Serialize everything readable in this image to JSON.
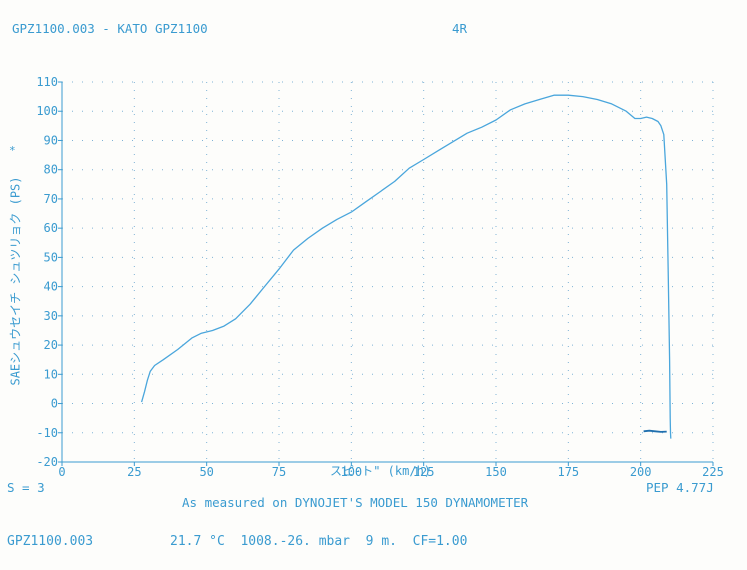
{
  "header": {
    "left": "GPZ1100.003 - KATO GPZ1100",
    "right": "4R"
  },
  "chart_data": {
    "type": "line",
    "xlabel": "スピ-ト\" (km/h)",
    "ylabel": "SAEシュウセイチ シュツリョク (PS)",
    "ylabel_marker": "*",
    "xlim": [
      0,
      225
    ],
    "ylim": [
      -20,
      110
    ],
    "x_ticks": [
      0,
      25,
      50,
      75,
      100,
      125,
      150,
      175,
      200,
      225
    ],
    "y_ticks": [
      110,
      100,
      90,
      80,
      70,
      60,
      50,
      40,
      30,
      20,
      10,
      0,
      -10,
      -20
    ],
    "grid": "dotted",
    "series": [
      {
        "color": "#4aa6dc",
        "x": [
          27.5,
          28.5,
          29.5,
          30.5,
          32,
          35,
          40,
          45,
          48,
          52,
          56,
          60,
          65,
          70,
          75,
          80,
          85,
          90,
          95,
          100,
          105,
          110,
          115,
          120,
          125,
          130,
          135,
          140,
          145,
          150,
          155,
          160,
          165,
          170,
          175,
          180,
          185,
          190,
          195,
          198,
          200,
          202,
          204,
          206,
          207,
          208,
          209,
          209.5,
          210,
          210.2,
          210.3,
          210.4
        ],
        "y": [
          0.5,
          4,
          8,
          11,
          13,
          15,
          18.5,
          22.5,
          24,
          25,
          26.5,
          29,
          34,
          40,
          46,
          52.5,
          56.5,
          60,
          63,
          65.5,
          69,
          72.5,
          76,
          80.5,
          83.5,
          86.5,
          89.5,
          92.5,
          94.5,
          97,
          100.5,
          102.5,
          104,
          105.5,
          105.5,
          105,
          104,
          102.5,
          100,
          97.5,
          97.5,
          98,
          97.5,
          96.5,
          95,
          92,
          75,
          45,
          15,
          -5,
          -10,
          -12
        ]
      },
      {
        "color": "#1f6fae",
        "x": [
          201,
          203,
          205,
          207,
          209
        ],
        "y": [
          -9.5,
          -9.3,
          -9.5,
          -9.7,
          -9.6
        ]
      }
    ]
  },
  "footer": {
    "smoothing": "S = 3",
    "peak": "PEP 4.77J",
    "measured_on": "As measured on DYNOJET'S MODEL 150 DYNAMOMETER",
    "file_name": "GPZ1100.003",
    "conditions": "21.7 °C  1008.-26. mbar  9 m.  CF=1.00"
  }
}
